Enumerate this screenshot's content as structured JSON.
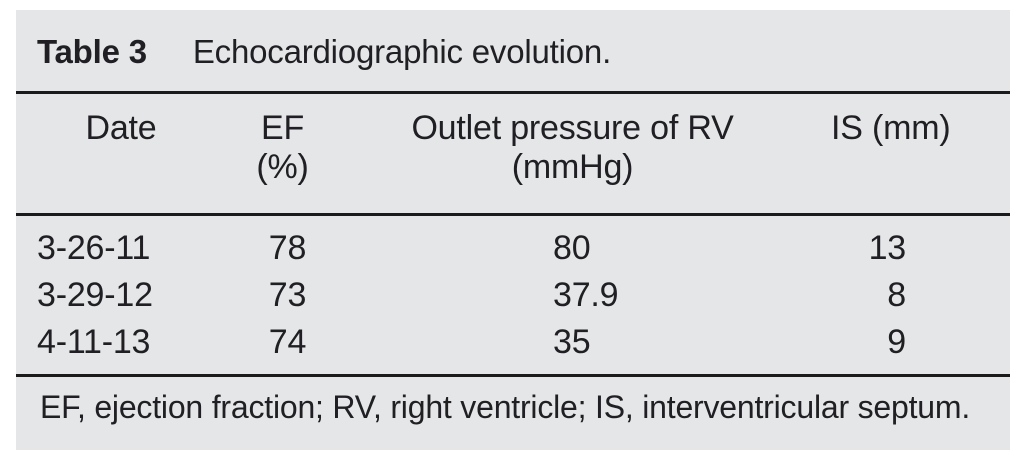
{
  "table": {
    "title_label": "Table 3",
    "title_text": "Echocardiographic evolution.",
    "columns": [
      {
        "line1": "Date",
        "line2": ""
      },
      {
        "line1": "EF",
        "line2": "(%)"
      },
      {
        "line1": "Outlet pressure of RV",
        "line2": "(mmHg)"
      },
      {
        "line1": "IS (mm)",
        "line2": ""
      }
    ],
    "rows": [
      {
        "date": "3-26-11",
        "ef": "78",
        "rv": "80",
        "is": "13"
      },
      {
        "date": "3-29-12",
        "ef": "73",
        "rv": "37.9",
        "is": "8"
      },
      {
        "date": "4-11-13",
        "ef": "74",
        "rv": "35",
        "is": "9"
      }
    ],
    "footnote": "EF, ejection fraction; RV, right ventricle; IS, interventricular septum."
  },
  "chart_data": {
    "type": "table",
    "title": "Table 3 Echocardiographic evolution.",
    "columns": [
      "Date",
      "EF (%)",
      "Outlet pressure of RV (mmHg)",
      "IS (mm)"
    ],
    "rows": [
      [
        "3-26-11",
        78,
        80,
        13
      ],
      [
        "3-29-12",
        73,
        37.9,
        8
      ],
      [
        "4-11-13",
        74,
        35,
        9
      ]
    ],
    "footnote": "EF, ejection fraction; RV, right ventricle; IS, interventricular septum."
  },
  "colors": {
    "panel_bg": "#e5e6e8",
    "rule": "#1b1b1c",
    "text": "#202024",
    "page_bg": "#ffffff"
  }
}
